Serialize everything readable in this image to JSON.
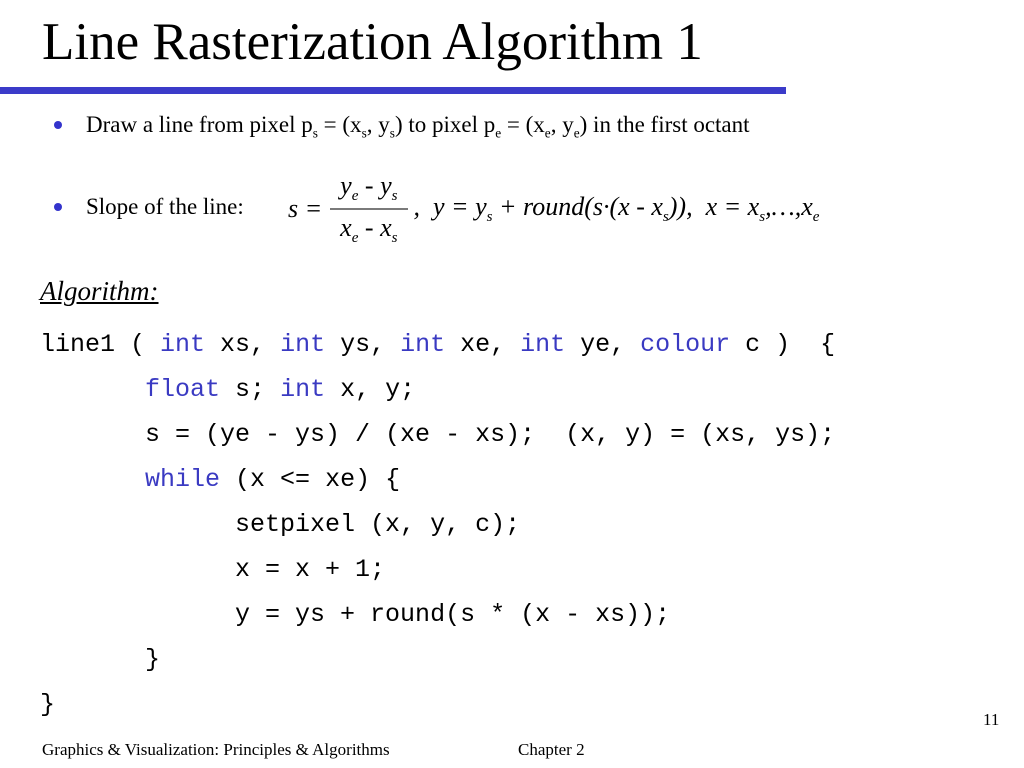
{
  "slide": {
    "title": "Line Rasterization Algorithm 1",
    "algorithm_label": "Algorithm:",
    "footer_left": "Graphics & Visualization: Principles & Algorithms",
    "footer_center": "Chapter 2",
    "page_number": "11"
  },
  "colors": {
    "accent_bar": "#3b3bc9",
    "bullet_dot": "#3333cc",
    "keyword": "#3a3ac2",
    "fraction_bar": "#7a7a7a"
  },
  "bullet1": {
    "segments": [
      {
        "t": "Draw a line from pixel p"
      },
      {
        "t": "s",
        "sub": true
      },
      {
        "t": " = (x"
      },
      {
        "t": "s",
        "sub": true
      },
      {
        "t": ", y"
      },
      {
        "t": "s",
        "sub": true
      },
      {
        "t": ") to pixel p"
      },
      {
        "t": "e",
        "sub": true
      },
      {
        "t": " = (x"
      },
      {
        "t": "e",
        "sub": true
      },
      {
        "t": ", y"
      },
      {
        "t": "e",
        "sub": true
      },
      {
        "t": ") in the first octant"
      }
    ]
  },
  "bullet2": {
    "label": "Slope of the line:"
  },
  "formula": {
    "lhs": [
      {
        "t": "s ="
      }
    ],
    "numerator": [
      {
        "t": "y"
      },
      {
        "t": "e",
        "sub": true
      },
      {
        "t": " - "
      },
      {
        "t": "y"
      },
      {
        "t": "s",
        "sub": true
      }
    ],
    "denominator": [
      {
        "t": "x"
      },
      {
        "t": "e",
        "sub": true
      },
      {
        "t": " - "
      },
      {
        "t": "x"
      },
      {
        "t": "s",
        "sub": true
      }
    ],
    "tail": [
      {
        "t": ",  y = y"
      },
      {
        "t": "s",
        "sub": true
      },
      {
        "t": " + round(s·(x - x"
      },
      {
        "t": "s",
        "sub": true
      },
      {
        "t": ")),  x = x"
      },
      {
        "t": "s",
        "sub": true
      },
      {
        "t": ",…,x"
      },
      {
        "t": "e",
        "sub": true
      }
    ]
  },
  "code": {
    "lines": [
      [
        {
          "t": "line1 ( "
        },
        {
          "t": "int",
          "kw": true
        },
        {
          "t": " xs, "
        },
        {
          "t": "int",
          "kw": true
        },
        {
          "t": " ys, "
        },
        {
          "t": "int",
          "kw": true
        },
        {
          "t": " xe, "
        },
        {
          "t": "int",
          "kw": true
        },
        {
          "t": " ye, "
        },
        {
          "t": "colour",
          "kw": true
        },
        {
          "t": " c )  {"
        }
      ],
      [
        {
          "t": "       "
        },
        {
          "t": "float",
          "kw": true
        },
        {
          "t": " s; "
        },
        {
          "t": "int",
          "kw": true
        },
        {
          "t": " x, y;"
        }
      ],
      [
        {
          "t": "       s = (ye - ys) / (xe - xs);  (x, y) = (xs, ys);"
        }
      ],
      [
        {
          "t": "       "
        },
        {
          "t": "while",
          "kw": true
        },
        {
          "t": " (x <= xe) {"
        }
      ],
      [
        {
          "t": "             setpixel (x, y, c);"
        }
      ],
      [
        {
          "t": "             x = x + 1;"
        }
      ],
      [
        {
          "t": "             y = ys + round(s * (x - xs));"
        }
      ],
      [
        {
          "t": "       }"
        }
      ],
      [
        {
          "t": "}"
        }
      ]
    ]
  }
}
